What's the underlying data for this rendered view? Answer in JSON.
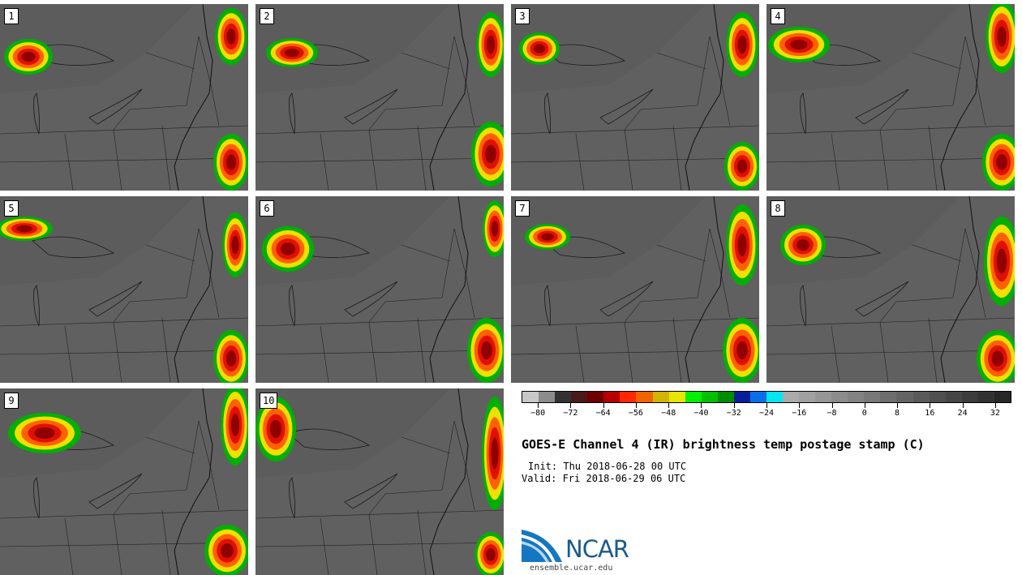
{
  "panels": [
    {
      "label": "1"
    },
    {
      "label": "2"
    },
    {
      "label": "3"
    },
    {
      "label": "4"
    },
    {
      "label": "5"
    },
    {
      "label": "6"
    },
    {
      "label": "7"
    },
    {
      "label": "8"
    },
    {
      "label": "9"
    },
    {
      "label": "10"
    }
  ],
  "colorbar": {
    "colors": [
      "#c8c8c8",
      "#8c8c8c",
      "#323232",
      "#4a1a1a",
      "#6e0000",
      "#b40000",
      "#ff2800",
      "#f06400",
      "#d2b400",
      "#e6e600",
      "#00f000",
      "#00c000",
      "#008c00",
      "#0a1e96",
      "#0a6eeb",
      "#00e6f0",
      "#aaaaaa",
      "#a0a0a0",
      "#969696",
      "#8c8c8c",
      "#828282",
      "#787878",
      "#6e6e6e",
      "#646464",
      "#5a5a5a",
      "#505050",
      "#464646",
      "#3c3c3c",
      "#323232",
      "#282828"
    ],
    "tick_labels": [
      "−80",
      "−72",
      "−64",
      "−56",
      "−48",
      "−40",
      "−32",
      "−24",
      "−16",
      "−8",
      "0",
      "8",
      "16",
      "24",
      "32"
    ],
    "min": -84,
    "max": 36
  },
  "title": "GOES-E Channel 4 (IR) brightness temp postage stamp (C)",
  "init": "Init: Thu 2018-06-28 00 UTC",
  "valid": "Valid: Fri 2018-06-29 06 UTC",
  "logo": {
    "text": "NCAR",
    "color": "#1b5a8c"
  },
  "website": "ensemble.ucar.edu"
}
